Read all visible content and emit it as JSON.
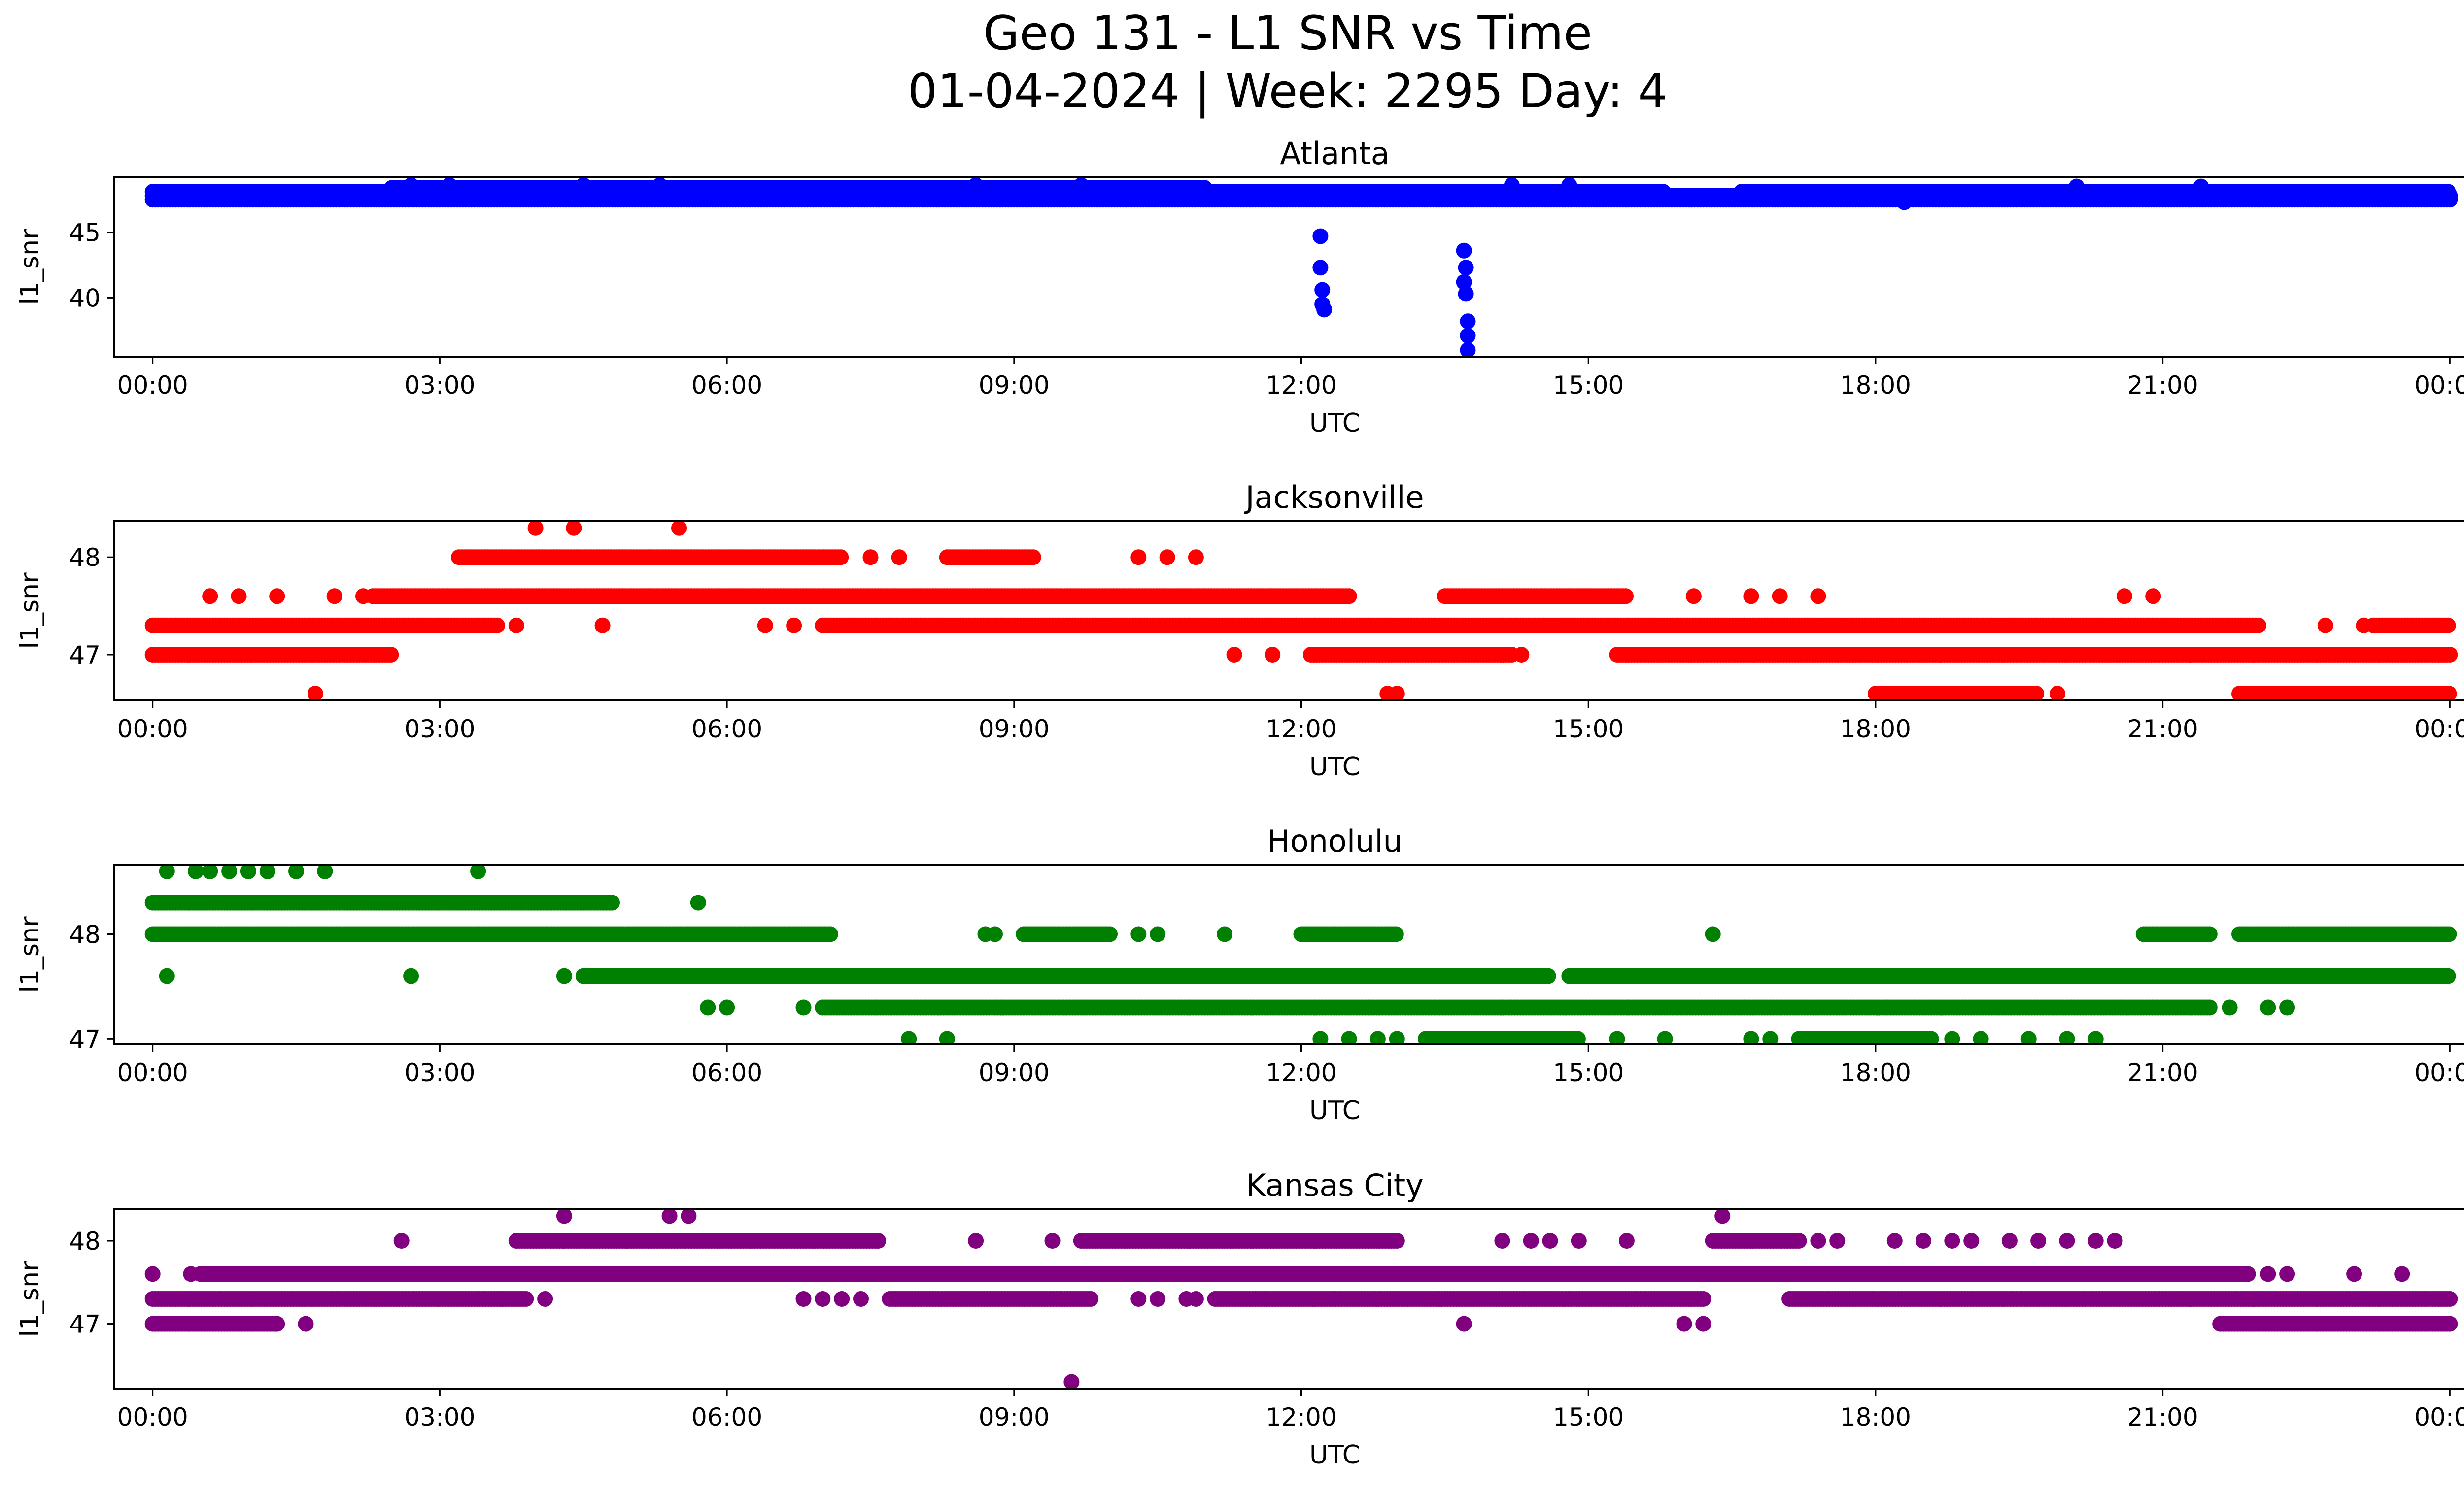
{
  "title": "Geo 131 - L1 SNR vs Time",
  "subtitle": "01-04-2024 | Week: 2295 Day: 4",
  "chart_data": [
    {
      "type": "scatter",
      "title": "Atlanta",
      "xlabel": "UTC",
      "ylabel": "l1_snr",
      "color": "#0000ff",
      "xlim": [
        -0.4,
        25.1
      ],
      "ylim": [
        35.5,
        49.2
      ],
      "xticks": [
        0,
        3,
        6,
        9,
        12,
        15,
        18,
        21,
        24
      ],
      "xticklabels": [
        "00:00",
        "03:00",
        "06:00",
        "09:00",
        "12:00",
        "15:00",
        "18:00",
        "21:00",
        "00:00"
      ],
      "yticks": [
        40,
        45
      ],
      "bands": [
        {
          "y": 47.5,
          "from": 0.0,
          "to": 24.0,
          "gaps": []
        },
        {
          "y": 47.8,
          "from": 0.0,
          "to": 24.0,
          "gaps": []
        },
        {
          "y": 48.1,
          "from": 0.0,
          "to": 15.8,
          "gaps": []
        },
        {
          "y": 48.1,
          "from": 16.6,
          "to": 24.0,
          "gaps": []
        },
        {
          "y": 48.4,
          "from": 2.5,
          "to": 11.0,
          "gaps": []
        }
      ],
      "points": [
        [
          12.2,
          44.7
        ],
        [
          12.2,
          42.3
        ],
        [
          12.22,
          40.6
        ],
        [
          12.22,
          39.5
        ],
        [
          12.24,
          39.1
        ],
        [
          13.7,
          43.6
        ],
        [
          13.72,
          42.3
        ],
        [
          13.7,
          41.2
        ],
        [
          13.72,
          40.3
        ],
        [
          13.74,
          38.2
        ],
        [
          13.74,
          37.1
        ],
        [
          13.74,
          36.0
        ],
        [
          2.7,
          48.6
        ],
        [
          3.1,
          48.6
        ],
        [
          4.5,
          48.6
        ],
        [
          5.3,
          48.6
        ],
        [
          8.6,
          48.6
        ],
        [
          9.7,
          48.6
        ],
        [
          14.2,
          48.6
        ],
        [
          14.8,
          48.6
        ],
        [
          18.3,
          47.3
        ],
        [
          20.1,
          48.5
        ],
        [
          21.4,
          48.5
        ]
      ]
    },
    {
      "type": "scatter",
      "title": "Jacksonville",
      "xlabel": "UTC",
      "ylabel": "l1_snr",
      "color": "#ff0000",
      "xlim": [
        -0.4,
        25.1
      ],
      "ylim": [
        46.53,
        48.37
      ],
      "xticks": [
        0,
        3,
        6,
        9,
        12,
        15,
        18,
        21,
        24
      ],
      "xticklabels": [
        "00:00",
        "03:00",
        "06:00",
        "09:00",
        "12:00",
        "15:00",
        "18:00",
        "21:00",
        "00:00"
      ],
      "yticks": [
        47,
        48
      ],
      "bands": [
        {
          "y": 47.0,
          "from": 0.0,
          "to": 2.5,
          "gaps": []
        },
        {
          "y": 47.0,
          "from": 12.1,
          "to": 14.2,
          "gaps": []
        },
        {
          "y": 47.0,
          "from": 15.3,
          "to": 24.0,
          "gaps": []
        },
        {
          "y": 47.3,
          "from": 0.0,
          "to": 3.6,
          "gaps": []
        },
        {
          "y": 47.3,
          "from": 7.0,
          "to": 22.0,
          "gaps": []
        },
        {
          "y": 47.3,
          "from": 23.2,
          "to": 24.0,
          "gaps": []
        },
        {
          "y": 47.6,
          "from": 2.3,
          "to": 12.5,
          "gaps": []
        },
        {
          "y": 47.6,
          "from": 13.5,
          "to": 15.4,
          "gaps": []
        },
        {
          "y": 48.0,
          "from": 3.2,
          "to": 7.2,
          "gaps": []
        },
        {
          "y": 48.0,
          "from": 8.3,
          "to": 9.2,
          "gaps": []
        },
        {
          "y": 46.6,
          "from": 18.0,
          "to": 19.7,
          "gaps": []
        },
        {
          "y": 46.6,
          "from": 21.8,
          "to": 24.0,
          "gaps": []
        }
      ],
      "points": [
        [
          0.6,
          47.6
        ],
        [
          0.9,
          47.6
        ],
        [
          1.3,
          47.6
        ],
        [
          1.9,
          47.6
        ],
        [
          2.2,
          47.6
        ],
        [
          1.7,
          46.6
        ],
        [
          3.8,
          47.3
        ],
        [
          4.7,
          47.3
        ],
        [
          4.0,
          48.3
        ],
        [
          4.4,
          48.3
        ],
        [
          5.5,
          48.3
        ],
        [
          6.4,
          47.3
        ],
        [
          6.7,
          47.3
        ],
        [
          7.5,
          48.0
        ],
        [
          7.8,
          48.0
        ],
        [
          10.3,
          48.0
        ],
        [
          10.6,
          48.0
        ],
        [
          10.9,
          48.0
        ],
        [
          11.3,
          47.0
        ],
        [
          11.7,
          47.0
        ],
        [
          12.9,
          46.6
        ],
        [
          13.0,
          46.6
        ],
        [
          14.3,
          47.0
        ],
        [
          16.1,
          47.6
        ],
        [
          16.7,
          47.6
        ],
        [
          17.0,
          47.6
        ],
        [
          17.4,
          47.6
        ],
        [
          20.6,
          47.6
        ],
        [
          20.9,
          47.6
        ],
        [
          22.7,
          47.3
        ],
        [
          23.1,
          47.3
        ],
        [
          19.9,
          46.6
        ]
      ]
    },
    {
      "type": "scatter",
      "title": "Honolulu",
      "xlabel": "UTC",
      "ylabel": "l1_snr",
      "color": "#008000",
      "xlim": [
        -0.4,
        25.1
      ],
      "ylim": [
        46.95,
        48.66
      ],
      "xticks": [
        0,
        3,
        6,
        9,
        12,
        15,
        18,
        21,
        24
      ],
      "xticklabels": [
        "00:00",
        "03:00",
        "06:00",
        "09:00",
        "12:00",
        "15:00",
        "18:00",
        "21:00",
        "00:00"
      ],
      "yticks": [
        47,
        48
      ],
      "bands": [
        {
          "y": 48.3,
          "from": 0.0,
          "to": 4.8,
          "gaps": []
        },
        {
          "y": 48.0,
          "from": 0.0,
          "to": 7.1,
          "gaps": []
        },
        {
          "y": 48.0,
          "from": 9.1,
          "to": 10.0,
          "gaps": []
        },
        {
          "y": 48.0,
          "from": 12.0,
          "to": 13.0,
          "gaps": []
        },
        {
          "y": 48.0,
          "from": 20.8,
          "to": 21.5,
          "gaps": []
        },
        {
          "y": 48.0,
          "from": 21.8,
          "to": 24.0,
          "gaps": []
        },
        {
          "y": 47.6,
          "from": 4.5,
          "to": 14.6,
          "gaps": []
        },
        {
          "y": 47.6,
          "from": 14.8,
          "to": 24.0,
          "gaps": []
        },
        {
          "y": 47.3,
          "from": 7.0,
          "to": 21.5,
          "gaps": []
        },
        {
          "y": 47.0,
          "from": 13.3,
          "to": 14.9,
          "gaps": []
        },
        {
          "y": 47.0,
          "from": 17.2,
          "to": 18.6,
          "gaps": []
        }
      ],
      "points": [
        [
          0.15,
          48.6
        ],
        [
          0.45,
          48.6
        ],
        [
          0.6,
          48.6
        ],
        [
          0.8,
          48.6
        ],
        [
          1.0,
          48.6
        ],
        [
          1.2,
          48.6
        ],
        [
          1.5,
          48.6
        ],
        [
          1.8,
          48.6
        ],
        [
          3.4,
          48.6
        ],
        [
          0.15,
          47.6
        ],
        [
          2.7,
          47.6
        ],
        [
          5.7,
          48.3
        ],
        [
          4.3,
          47.6
        ],
        [
          5.8,
          47.3
        ],
        [
          6.0,
          47.3
        ],
        [
          6.8,
          47.3
        ],
        [
          7.9,
          47.0
        ],
        [
          8.3,
          47.0
        ],
        [
          8.7,
          48.0
        ],
        [
          8.8,
          48.0
        ],
        [
          10.3,
          48.0
        ],
        [
          10.5,
          48.0
        ],
        [
          11.2,
          48.0
        ],
        [
          12.2,
          47.0
        ],
        [
          12.5,
          47.0
        ],
        [
          12.8,
          47.0
        ],
        [
          13.0,
          47.0
        ],
        [
          14.5,
          47.6
        ],
        [
          15.3,
          47.0
        ],
        [
          15.8,
          47.0
        ],
        [
          16.3,
          48.0
        ],
        [
          16.7,
          47.0
        ],
        [
          16.9,
          47.0
        ],
        [
          18.8,
          47.0
        ],
        [
          19.1,
          47.0
        ],
        [
          19.6,
          47.0
        ],
        [
          20.0,
          47.0
        ],
        [
          20.3,
          47.0
        ],
        [
          21.7,
          47.3
        ],
        [
          22.1,
          47.3
        ],
        [
          22.3,
          47.3
        ]
      ]
    },
    {
      "type": "scatter",
      "title": "Kansas City",
      "xlabel": "UTC",
      "ylabel": "l1_snr",
      "color": "#800080",
      "xlim": [
        -0.4,
        25.1
      ],
      "ylim": [
        46.22,
        48.38
      ],
      "xticks": [
        0,
        3,
        6,
        9,
        12,
        15,
        18,
        21,
        24
      ],
      "xticklabels": [
        "00:00",
        "03:00",
        "06:00",
        "09:00",
        "12:00",
        "15:00",
        "18:00",
        "21:00",
        "00:00"
      ],
      "yticks": [
        47,
        48
      ],
      "bands": [
        {
          "y": 47.0,
          "from": 0.0,
          "to": 1.3,
          "gaps": []
        },
        {
          "y": 47.0,
          "from": 21.6,
          "to": 24.0,
          "gaps": []
        },
        {
          "y": 47.3,
          "from": 0.0,
          "to": 3.9,
          "gaps": []
        },
        {
          "y": 47.3,
          "from": 7.7,
          "to": 9.8,
          "gaps": []
        },
        {
          "y": 47.3,
          "from": 11.1,
          "to": 16.2,
          "gaps": []
        },
        {
          "y": 47.3,
          "from": 17.1,
          "to": 24.0,
          "gaps": []
        },
        {
          "y": 47.6,
          "from": 0.5,
          "to": 21.9,
          "gaps": []
        },
        {
          "y": 48.0,
          "from": 3.8,
          "to": 7.6,
          "gaps": []
        },
        {
          "y": 48.0,
          "from": 9.7,
          "to": 13.0,
          "gaps": []
        },
        {
          "y": 48.0,
          "from": 16.3,
          "to": 17.2,
          "gaps": []
        }
      ],
      "points": [
        [
          0.0,
          47.6
        ],
        [
          0.4,
          47.6
        ],
        [
          1.6,
          47.0
        ],
        [
          1.3,
          47.0
        ],
        [
          2.6,
          48.0
        ],
        [
          4.1,
          47.3
        ],
        [
          4.3,
          48.3
        ],
        [
          5.4,
          48.3
        ],
        [
          5.6,
          48.3
        ],
        [
          6.8,
          47.3
        ],
        [
          7.0,
          47.3
        ],
        [
          7.2,
          47.3
        ],
        [
          7.4,
          47.3
        ],
        [
          8.6,
          48.0
        ],
        [
          9.4,
          48.0
        ],
        [
          9.6,
          46.3
        ],
        [
          10.3,
          47.3
        ],
        [
          10.5,
          47.3
        ],
        [
          10.8,
          47.3
        ],
        [
          10.9,
          47.3
        ],
        [
          13.7,
          47.0
        ],
        [
          14.1,
          48.0
        ],
        [
          14.4,
          48.0
        ],
        [
          14.6,
          48.0
        ],
        [
          14.9,
          48.0
        ],
        [
          15.4,
          48.0
        ],
        [
          16.0,
          47.0
        ],
        [
          16.2,
          47.0
        ],
        [
          16.4,
          48.3
        ],
        [
          17.4,
          48.0
        ],
        [
          17.6,
          48.0
        ],
        [
          18.2,
          48.0
        ],
        [
          18.5,
          48.0
        ],
        [
          18.8,
          48.0
        ],
        [
          19.0,
          48.0
        ],
        [
          19.4,
          48.0
        ],
        [
          19.7,
          48.0
        ],
        [
          20.0,
          48.0
        ],
        [
          20.3,
          48.0
        ],
        [
          20.5,
          48.0
        ],
        [
          22.1,
          47.6
        ],
        [
          22.3,
          47.6
        ],
        [
          23.0,
          47.6
        ],
        [
          23.5,
          47.6
        ]
      ]
    }
  ]
}
